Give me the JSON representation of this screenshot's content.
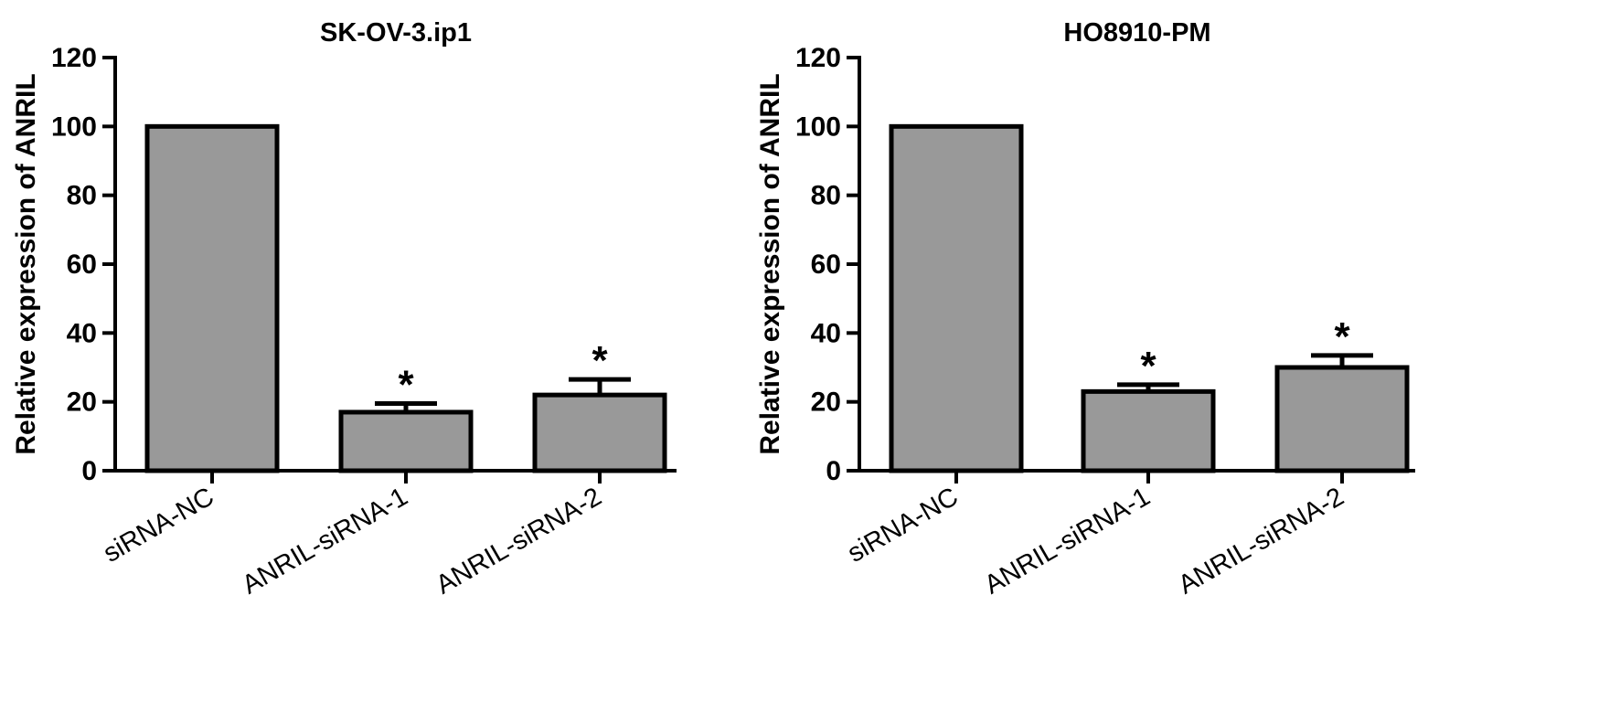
{
  "chart_data": [
    {
      "type": "bar",
      "title": "SK-OV-3.ip1",
      "xlabel": "",
      "ylabel": "Relative expression of ANRIL",
      "ylim": [
        0,
        120
      ],
      "yticks": [
        "0",
        "20",
        "40",
        "60",
        "80",
        "100",
        "120"
      ],
      "categories": [
        "siRNA-NC",
        "ANRIL-siRNA-1",
        "ANRIL-siRNA-2"
      ],
      "values": [
        100,
        17,
        22
      ],
      "errors": [
        0,
        2.5,
        4.5
      ],
      "annotations": [
        "",
        "*",
        "*"
      ],
      "bar_color": "#999999",
      "grid": false,
      "legend": "none"
    },
    {
      "type": "bar",
      "title": "HO8910-PM",
      "xlabel": "",
      "ylabel": "Relative expression of ANRIL",
      "ylim": [
        0,
        120
      ],
      "yticks": [
        "0",
        "20",
        "40",
        "60",
        "80",
        "100",
        "120"
      ],
      "categories": [
        "siRNA-NC",
        "ANRIL-siRNA-1",
        "ANRIL-siRNA-2"
      ],
      "values": [
        100,
        23,
        30
      ],
      "errors": [
        0,
        2,
        3.5
      ],
      "annotations": [
        "",
        "*",
        "*"
      ],
      "bar_color": "#999999",
      "grid": false,
      "legend": "none"
    }
  ]
}
